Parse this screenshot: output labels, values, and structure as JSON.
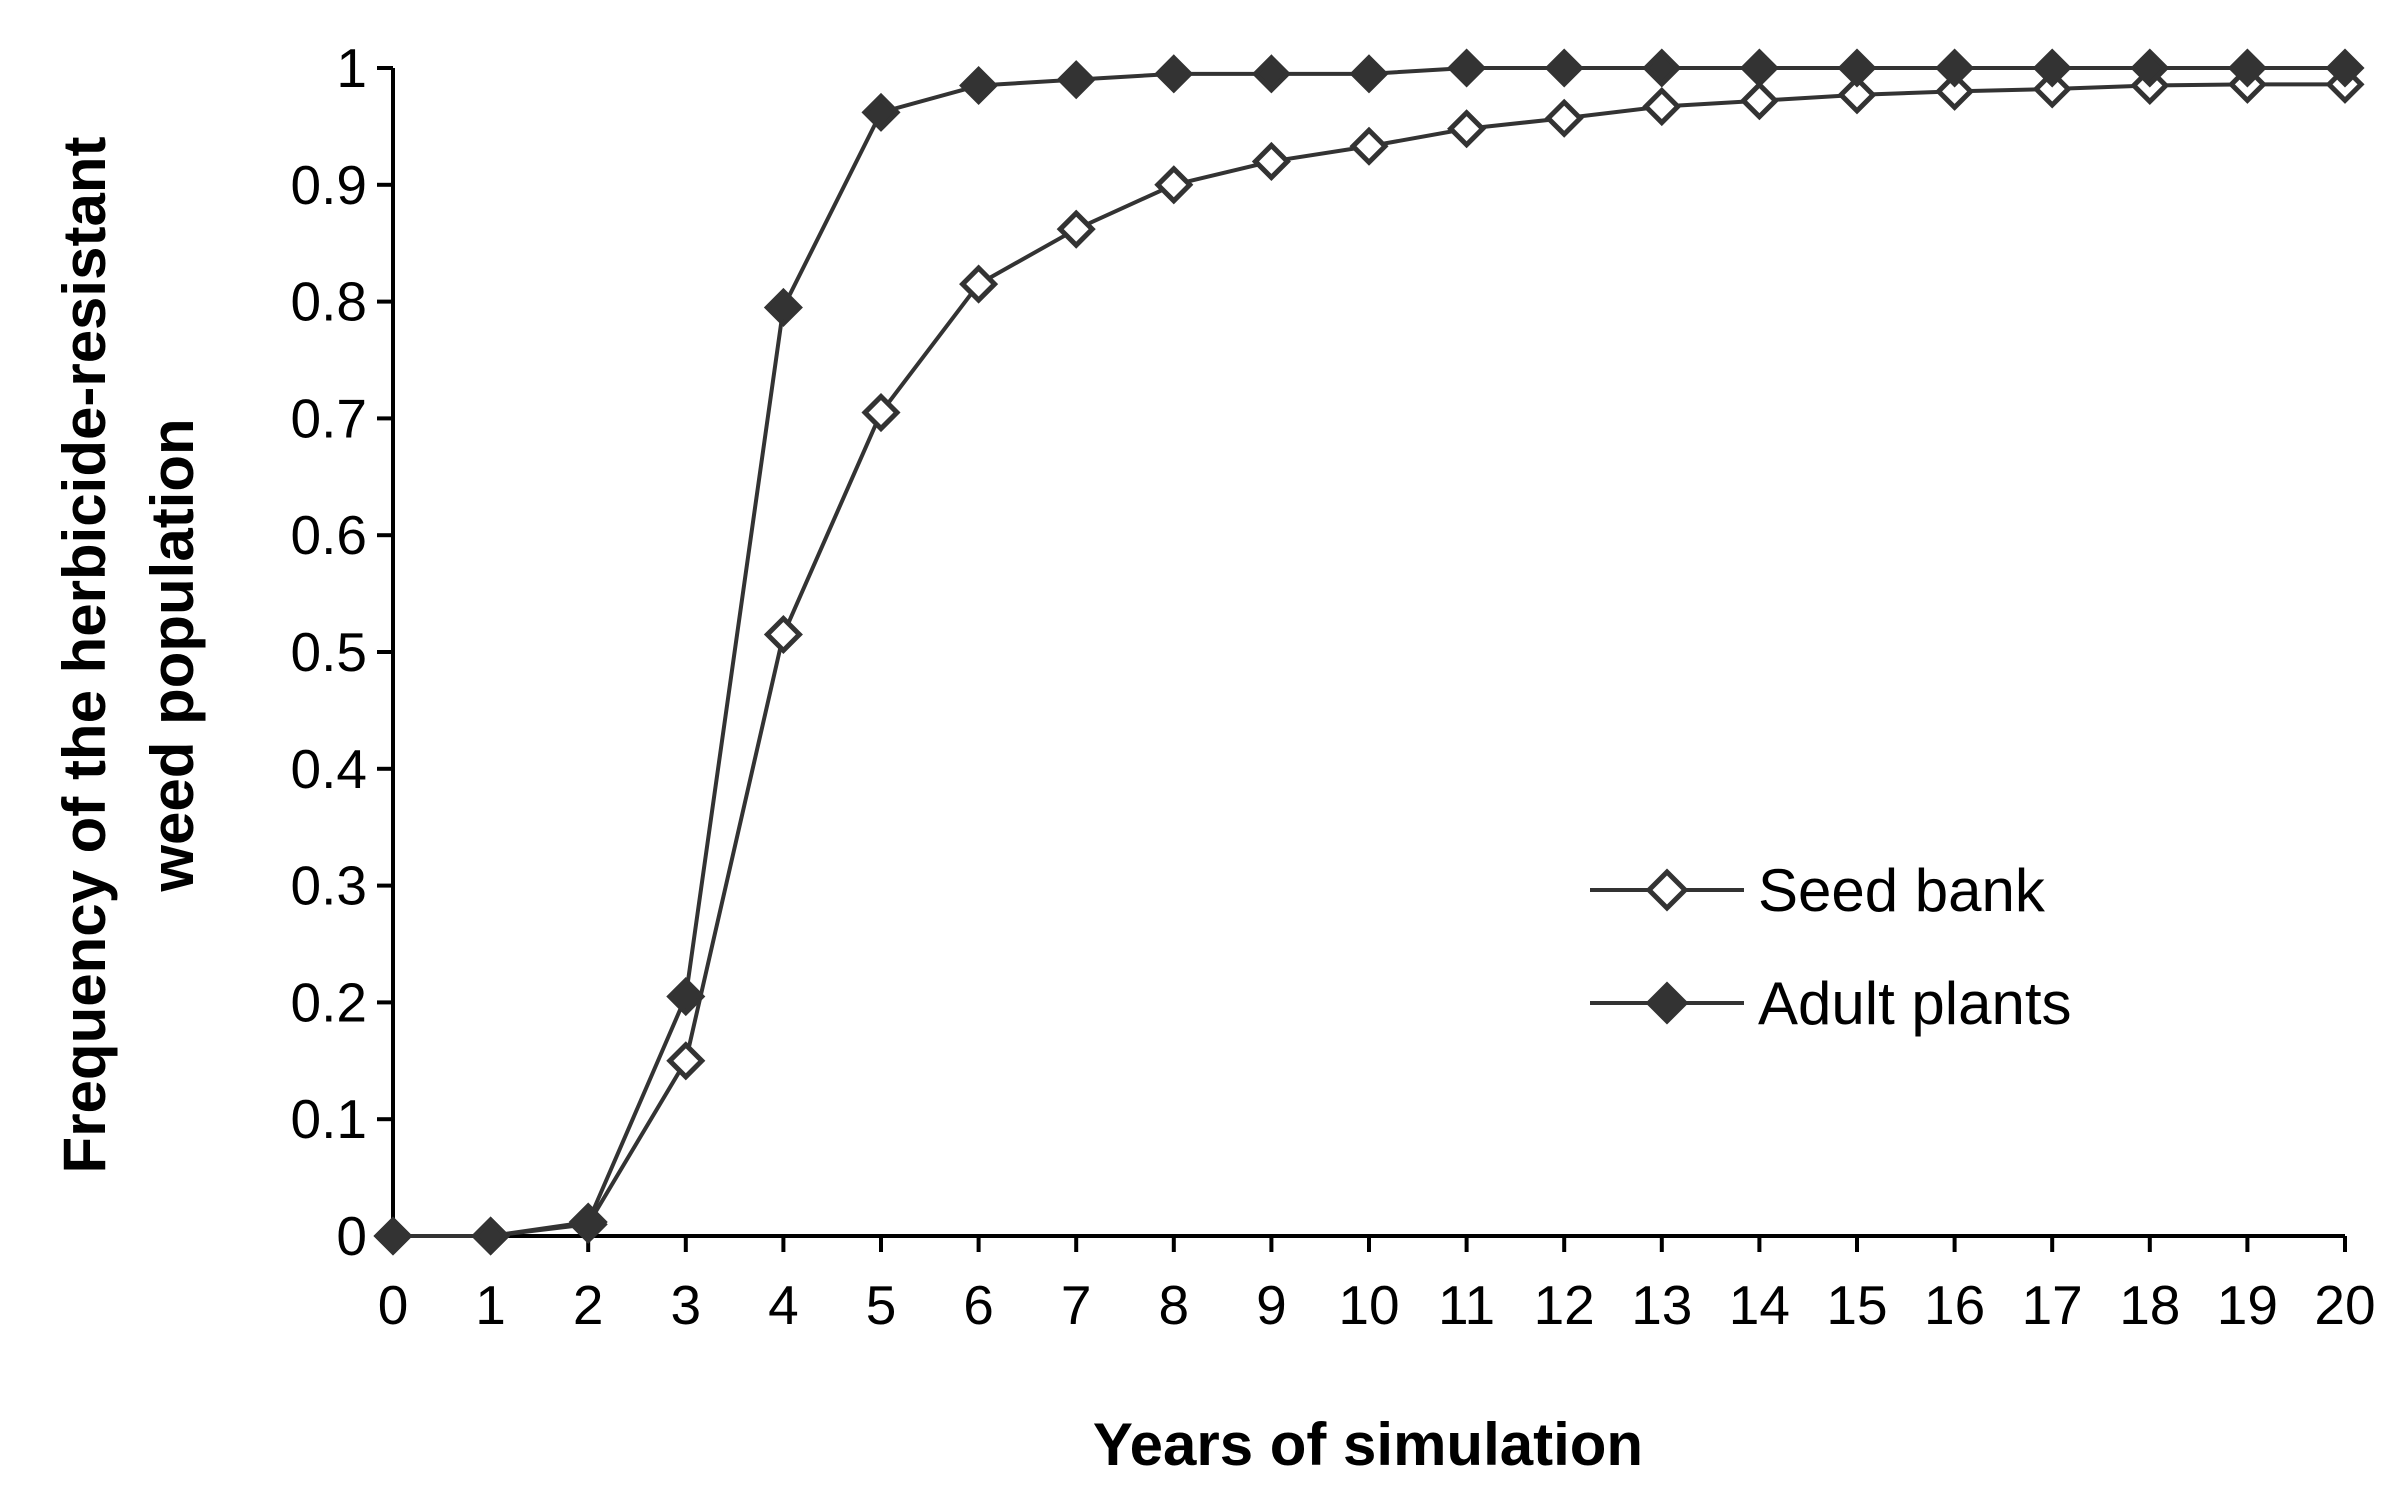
{
  "chart_data": {
    "type": "line",
    "title": "",
    "xlabel": "Years of simulation",
    "ylabel_lines": [
      "Frequency of the herbicide-resistant",
      "weed population"
    ],
    "x": [
      0,
      1,
      2,
      3,
      4,
      5,
      6,
      7,
      8,
      9,
      10,
      11,
      12,
      13,
      14,
      15,
      16,
      17,
      18,
      19,
      20
    ],
    "xlim": [
      0,
      20
    ],
    "ylim": [
      0,
      1
    ],
    "y_ticks": [
      "0",
      "0.1",
      "0.2",
      "0.3",
      "0.4",
      "0.5",
      "0.6",
      "0.7",
      "0.8",
      "0.9",
      "1"
    ],
    "x_ticks": [
      "0",
      "1",
      "2",
      "3",
      "4",
      "5",
      "6",
      "7",
      "8",
      "9",
      "10",
      "11",
      "12",
      "13",
      "14",
      "15",
      "16",
      "17",
      "18",
      "19",
      "20"
    ],
    "grid": false,
    "legend_position": "center-right",
    "series": [
      {
        "name": "Seed bank",
        "marker": "open-diamond",
        "color": "#333333",
        "values": [
          0,
          0,
          0.01,
          0.15,
          0.515,
          0.705,
          0.815,
          0.862,
          0.9,
          0.92,
          0.933,
          0.948,
          0.957,
          0.967,
          0.972,
          0.977,
          0.98,
          0.982,
          0.985,
          0.986,
          0.986
        ]
      },
      {
        "name": "Adult plants",
        "marker": "filled-diamond",
        "color": "#333333",
        "values": [
          0,
          0,
          0.012,
          0.205,
          0.795,
          0.962,
          0.985,
          0.99,
          0.995,
          0.995,
          0.995,
          1.0,
          1.0,
          1.0,
          1.0,
          1.0,
          1.0,
          1.0,
          1.0,
          1.0,
          1.0
        ]
      }
    ]
  }
}
